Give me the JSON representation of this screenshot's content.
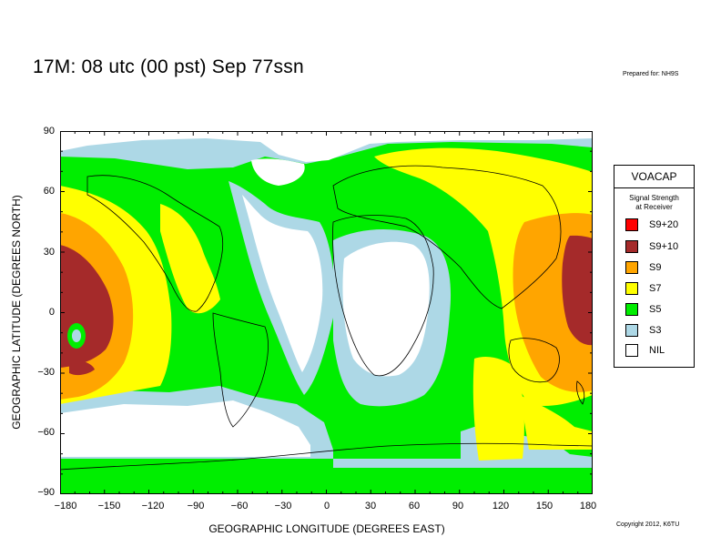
{
  "title": "17M:  08 utc (00 pst) Sep 77ssn",
  "prepared_for": "Prepared for: NH9S",
  "copyright": "Copyright 2012, K6TU",
  "axes": {
    "ylabel": "GEOGRAPHIC LATITUDE (DEGREES NORTH)",
    "xlabel": "GEOGRAPHIC LONGITUDE (DEGREES EAST)",
    "yticks": [
      "90",
      "60",
      "30",
      "0",
      "−30",
      "−60",
      "−90"
    ],
    "xticks": [
      "−180",
      "−150",
      "−120",
      "−90",
      "−60",
      "−30",
      "0",
      "30",
      "60",
      "90",
      "120",
      "150",
      "180"
    ],
    "lon_range": [
      -180,
      180
    ],
    "lat_range": [
      -90,
      90
    ]
  },
  "legend": {
    "title": "VOACAP",
    "subtitle_line1": "Signal Strength",
    "subtitle_line2": "at Receiver",
    "items": [
      {
        "label": "S9+20",
        "color": "#ff0000"
      },
      {
        "label": "S9+10",
        "color": "#a52a2a"
      },
      {
        "label": "S9",
        "color": "#ffa500"
      },
      {
        "label": "S7",
        "color": "#ffff00"
      },
      {
        "label": "S5",
        "color": "#00ee00"
      },
      {
        "label": "S3",
        "color": "#add8e6"
      },
      {
        "label": "NIL",
        "color": "#ffffff"
      }
    ]
  }
}
